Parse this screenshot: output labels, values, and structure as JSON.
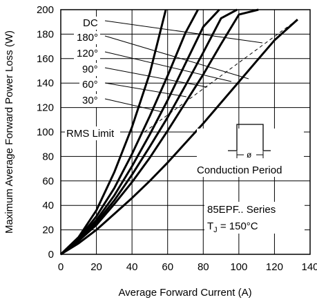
{
  "chart_data": {
    "type": "line",
    "title": "",
    "xlabel": "Average Forward Current (A)",
    "ylabel": "Maximum Average Forward Power Loss (W)",
    "xlim": [
      0,
      140
    ],
    "ylim": [
      0,
      200
    ],
    "xticks": [
      0,
      20,
      40,
      60,
      80,
      100,
      120,
      140
    ],
    "yticks": [
      0,
      20,
      40,
      60,
      80,
      100,
      120,
      140,
      160,
      180,
      200
    ],
    "grid": true,
    "series": [
      {
        "name": "30°",
        "x": [
          0,
          10,
          20,
          30,
          40,
          50,
          59
        ],
        "y": [
          0,
          14,
          36,
          67,
          104,
          148,
          200
        ]
      },
      {
        "name": "60°",
        "x": [
          0,
          10,
          20,
          30,
          40,
          50,
          60,
          70,
          77
        ],
        "y": [
          0,
          13,
          31,
          54,
          82,
          113,
          146,
          181,
          200
        ]
      },
      {
        "name": "90°",
        "x": [
          0,
          10,
          20,
          30,
          40,
          50,
          60,
          70,
          80,
          89
        ],
        "y": [
          0,
          12,
          28,
          48,
          72,
          98,
          126,
          156,
          186,
          200
        ]
      },
      {
        "name": "120°",
        "x": [
          0,
          10,
          20,
          30,
          40,
          50,
          60,
          70,
          80,
          90,
          99
        ],
        "y": [
          0,
          11,
          26,
          44,
          65,
          88,
          112,
          138,
          165,
          193,
          200
        ]
      },
      {
        "name": "180°",
        "x": [
          0,
          10,
          20,
          30,
          40,
          50,
          60,
          70,
          80,
          90,
          100,
          111
        ],
        "y": [
          0,
          11,
          24,
          41,
          59,
          79,
          101,
          124,
          147,
          172,
          196,
          200
        ]
      },
      {
        "name": "DC",
        "x": [
          0,
          10,
          20,
          30,
          40,
          50,
          60,
          70,
          80,
          90,
          100,
          110,
          120,
          133
        ],
        "y": [
          0,
          9,
          20,
          33,
          46,
          60,
          75,
          91,
          107,
          124,
          141,
          158,
          175,
          192
        ]
      }
    ],
    "rms_limit": {
      "label": "RMS Limit",
      "x": [
        47,
        133
      ],
      "y": [
        100,
        192
      ]
    },
    "legend_labels": [
      "DC",
      "180°",
      "120°",
      "90°",
      "60°",
      "30°"
    ],
    "inset_label": "Conduction Period",
    "inset_symbol": "ø",
    "series_label": "85EPF.. Series",
    "tj_prefix": "T",
    "tj_sub": "J",
    "tj_value": " = 150°C"
  }
}
